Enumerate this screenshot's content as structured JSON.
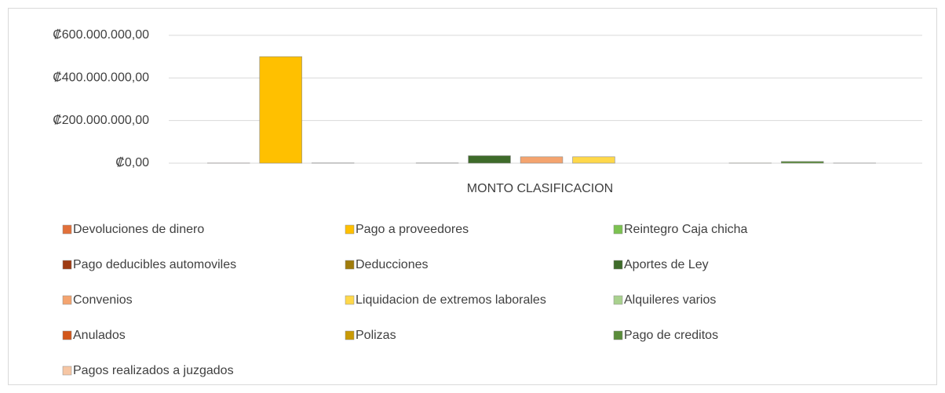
{
  "chart_data": {
    "type": "bar",
    "categories": [
      "MONTO CLASIFICACION"
    ],
    "ylim": [
      0,
      600000000
    ],
    "yticks": [
      {
        "value": 0,
        "label": "₡0,00"
      },
      {
        "value": 200000000,
        "label": "₡200.000.000,00"
      },
      {
        "value": 400000000,
        "label": "₡400.000.000,00"
      },
      {
        "value": 600000000,
        "label": "₡600.000.000,00"
      }
    ],
    "grid": true,
    "legend": "bottom",
    "series": [
      {
        "name": "Devoluciones de dinero",
        "color": "#e2703a",
        "values": [
          500000
        ]
      },
      {
        "name": "Pago a proveedores",
        "color": "#ffc000",
        "values": [
          500000000
        ]
      },
      {
        "name": "Reintegro Caja chicha",
        "color": "#7cc251",
        "values": [
          1000000
        ]
      },
      {
        "name": "Pago deducibles automoviles",
        "color": "#9e3b12",
        "values": [
          0
        ]
      },
      {
        "name": "Deducciones",
        "color": "#a07c0c",
        "values": [
          1000000
        ]
      },
      {
        "name": "Aportes de Ley",
        "color": "#3e6b2a",
        "values": [
          35000000
        ]
      },
      {
        "name": "Convenios",
        "color": "#f4a46f",
        "values": [
          30000000
        ]
      },
      {
        "name": "Liquidacion de extremos laborales",
        "color": "#ffd84a",
        "values": [
          30000000
        ]
      },
      {
        "name": "Alquileres varios",
        "color": "#a9d18e",
        "values": [
          0
        ]
      },
      {
        "name": "Anulados",
        "color": "#d2561a",
        "values": [
          0
        ]
      },
      {
        "name": "Polizas",
        "color": "#c99a06",
        "values": [
          500000
        ]
      },
      {
        "name": "Pago de creditos",
        "color": "#5a8c3a",
        "values": [
          8000000
        ]
      },
      {
        "name": "Pagos realizados a juzgados",
        "color": "#f6c6a4",
        "values": [
          500000
        ]
      }
    ]
  }
}
